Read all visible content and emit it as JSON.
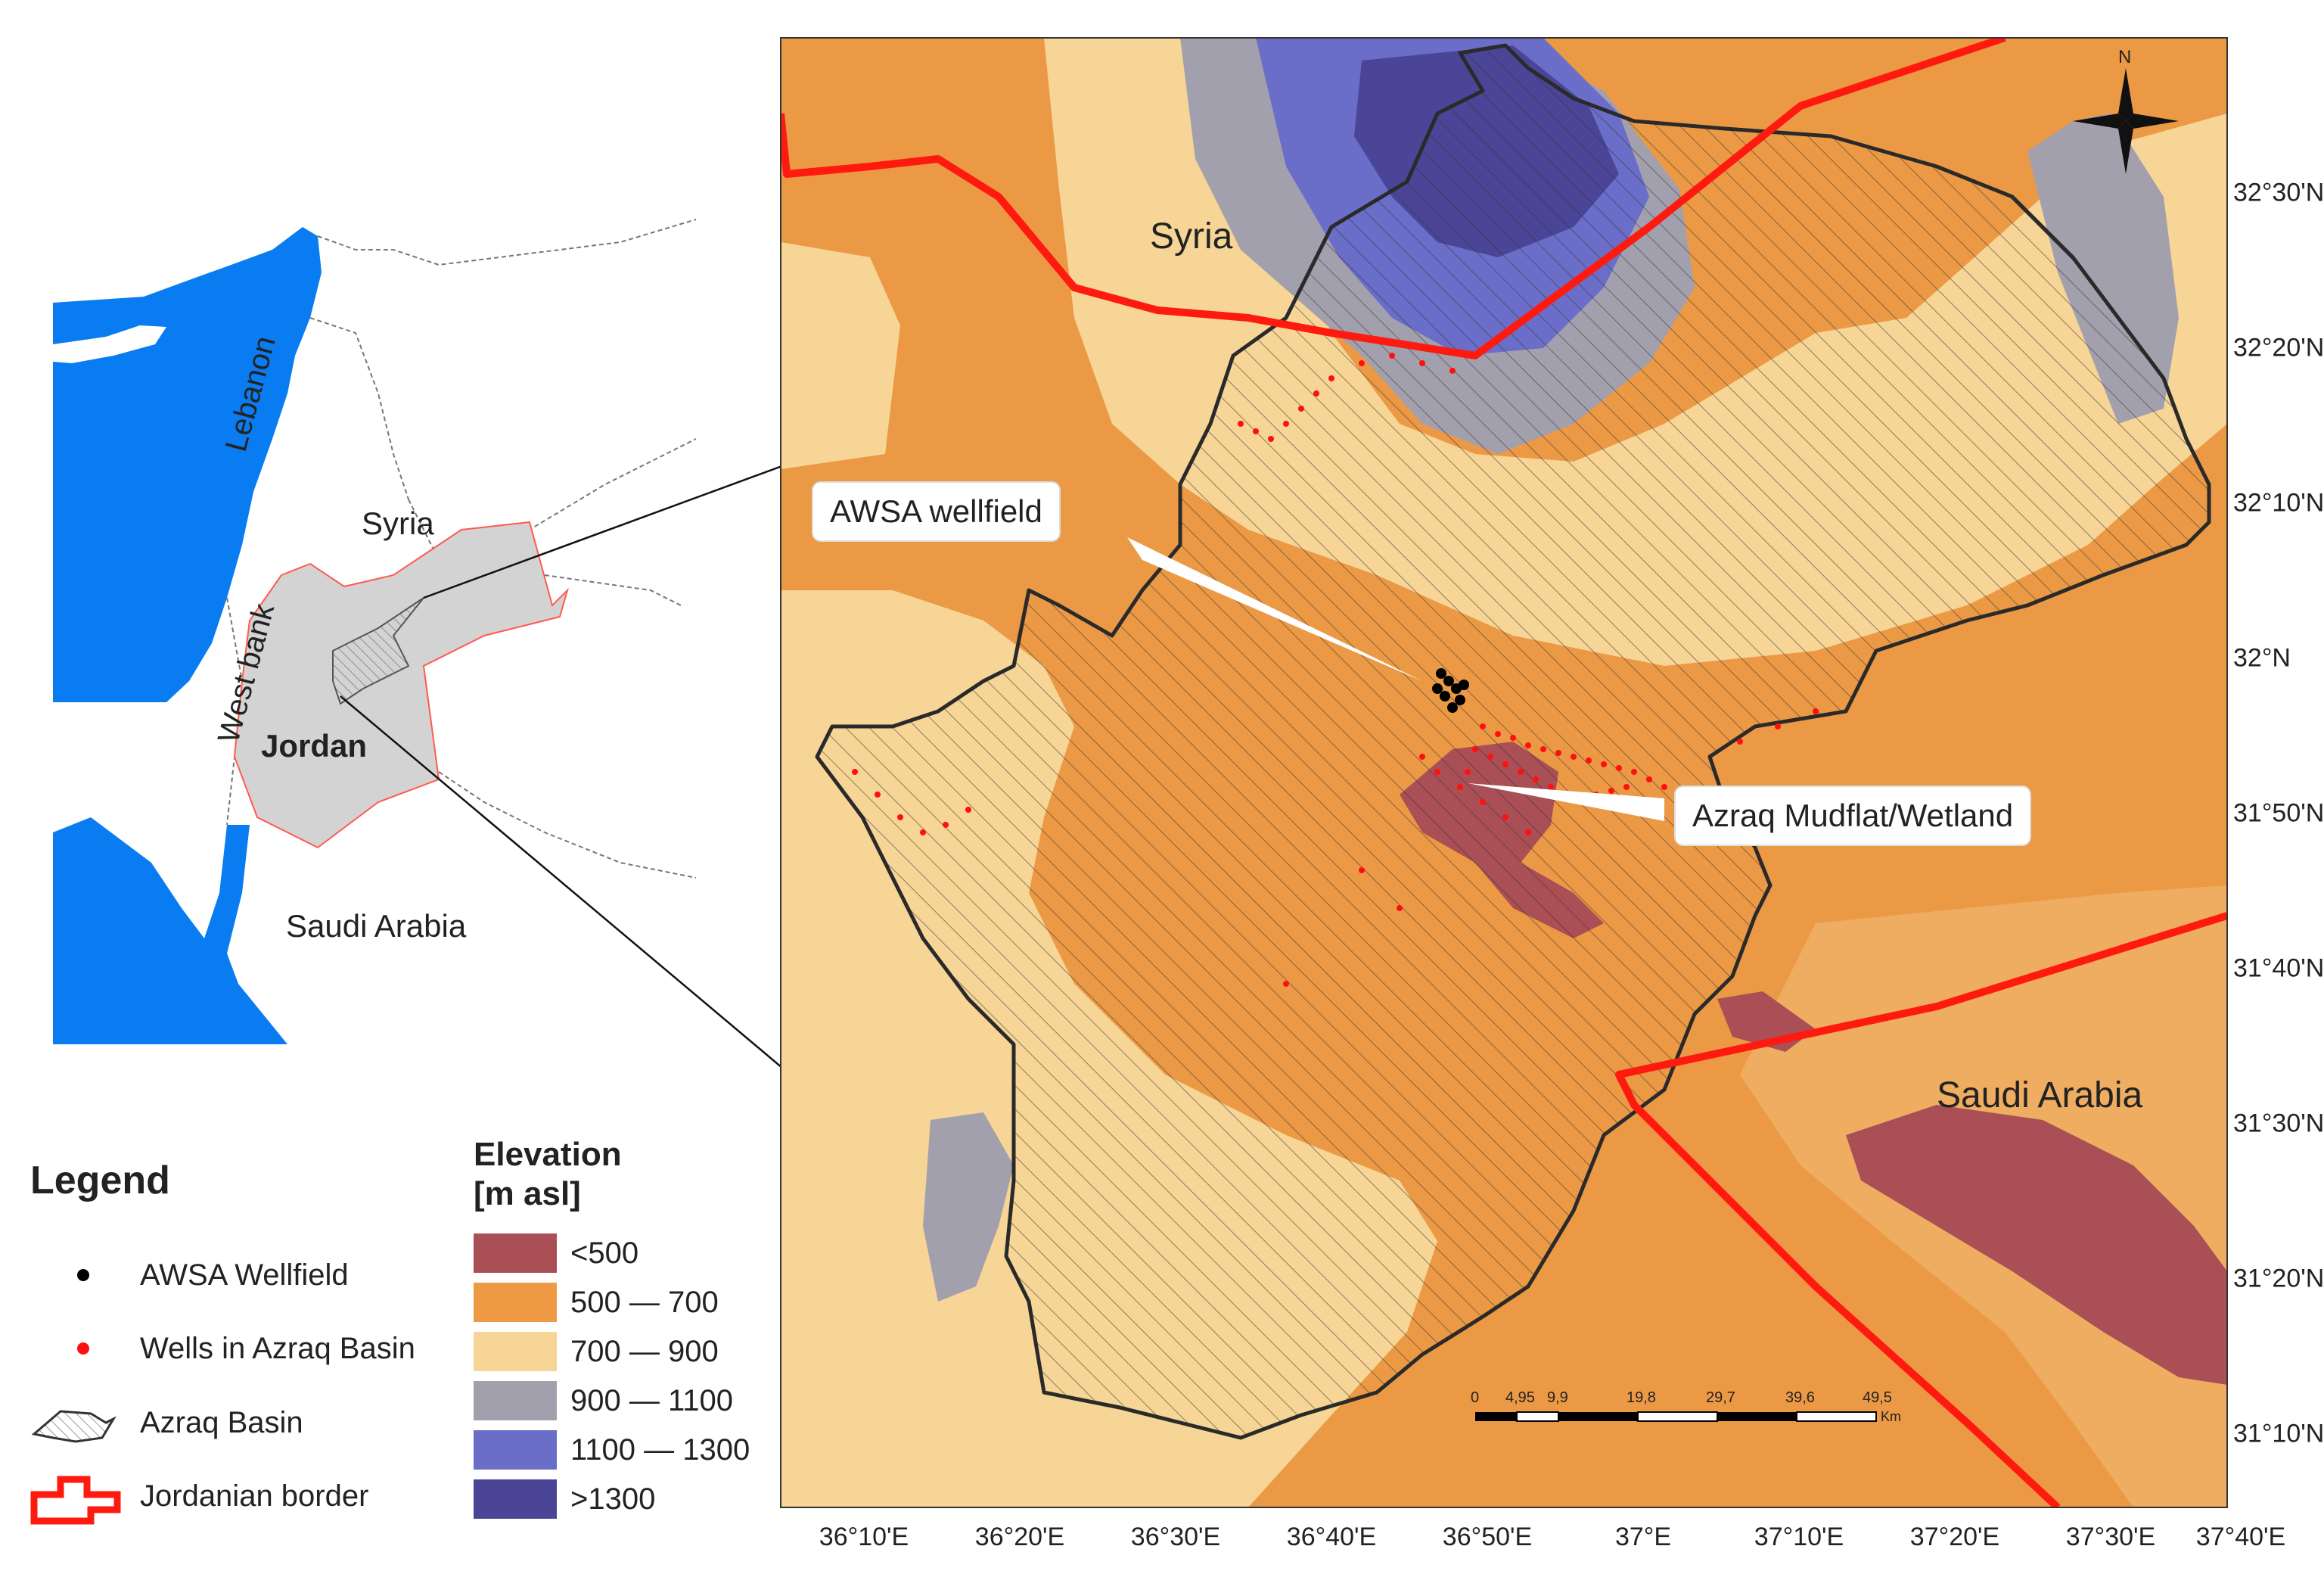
{
  "inset_map": {
    "labels": {
      "lebanon": "Lebanon",
      "syria": "Syria",
      "west_bank": "West bank",
      "jordan": "Jordan",
      "saudi_arabia": "Saudi Arabia"
    }
  },
  "main_map": {
    "labels": {
      "syria": "Syria",
      "saudi_arabia": "Saudi Arabia",
      "north": "N"
    },
    "callouts": {
      "awsa": "AWSA wellfield",
      "azraq": "Azraq Mudflat/Wetland"
    },
    "scale_bar": {
      "ticks": [
        "0",
        "4,95",
        "9,9",
        "19,8",
        "29,7",
        "39,6",
        "49,5"
      ],
      "unit": "Km"
    },
    "x_ticks": [
      "36°10'E",
      "36°20'E",
      "36°30'E",
      "36°40'E",
      "36°50'E",
      "37°E",
      "37°10'E",
      "37°20'E",
      "37°30'E",
      "37°40'E"
    ],
    "y_ticks": [
      "32°30'N",
      "32°20'N",
      "32°10'N",
      "32°N",
      "31°50'N",
      "31°40'N",
      "31°30'N",
      "31°20'N",
      "31°10'N"
    ]
  },
  "legend": {
    "title": "Legend",
    "items": [
      {
        "label": "AWSA Wellfield",
        "symbol": "black-dot"
      },
      {
        "label": "Wells in Azraq Basin",
        "symbol": "red-dot"
      },
      {
        "label": "Azraq Basin",
        "symbol": "basin-outline"
      },
      {
        "label": "Jordanian border",
        "symbol": "red-border"
      }
    ]
  },
  "elevation_legend": {
    "title_line1": "Elevation",
    "title_line2": "[m asl]",
    "classes": [
      {
        "label": "<500",
        "color": "#a94f55"
      },
      {
        "label": "500  —  700",
        "color": "#ee9a45"
      },
      {
        "label": "700  —  900",
        "color": "#f6d596"
      },
      {
        "label": "900  —  1100",
        "color": "#a3a0ad"
      },
      {
        "label": "1100  —  1300",
        "color": "#6a6ec8"
      },
      {
        "label": ">1300",
        "color": "#4a4596"
      }
    ]
  },
  "colors": {
    "sea": "#0a7cf2",
    "inset_jordan": "#d3d3d3",
    "border": "#ff1a10",
    "basin_outline": "#2a2a2a"
  }
}
